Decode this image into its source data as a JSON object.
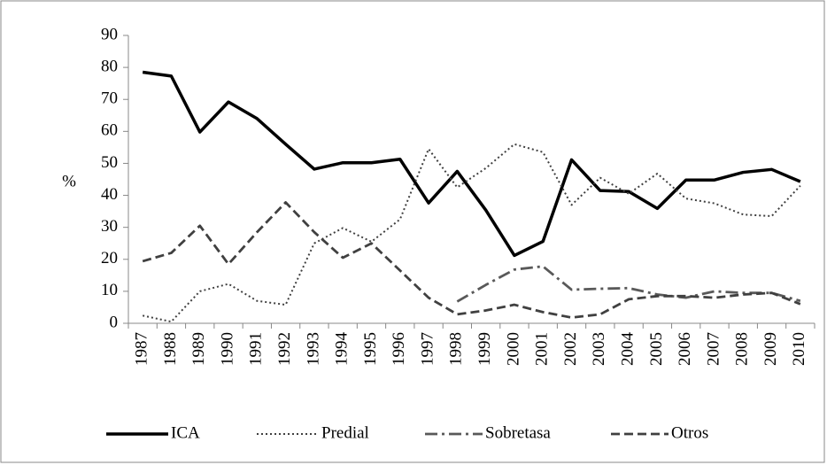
{
  "chart_data": {
    "type": "line",
    "y_label": "%",
    "categories": [
      "1987",
      "1988",
      "1989",
      "1990",
      "1991",
      "1992",
      "1993",
      "1994",
      "1995",
      "1996",
      "1997",
      "1998",
      "1999",
      "2000",
      "2001",
      "2002",
      "2003",
      "2004",
      "2005",
      "2006",
      "2007",
      "2008",
      "2009",
      "2010"
    ],
    "series": [
      {
        "name": "ICA",
        "color": "#000000",
        "linestyle": "solid",
        "values": [
          78.5,
          77.3,
          59.8,
          69.2,
          64,
          56,
          48.2,
          50.2,
          50.2,
          51.3,
          37.6,
          47.5,
          35.4,
          21.2,
          25.6,
          51.1,
          41.5,
          41.2,
          35.9,
          44.8,
          44.8,
          47.2,
          48.1,
          44.3
        ]
      },
      {
        "name": "Predial",
        "color": "#404040",
        "linestyle": "dotted",
        "values": [
          2.4,
          0.5,
          10,
          12.3,
          7,
          5.8,
          25,
          29.8,
          25.5,
          32.5,
          54.5,
          42.5,
          48.5,
          56,
          53.5,
          37,
          45.5,
          40.5,
          46.8,
          39,
          37.5,
          34,
          33.5,
          43
        ]
      },
      {
        "name": "Sobretasa",
        "color": "#595959",
        "linestyle": "dashdot",
        "values": [
          null,
          null,
          null,
          null,
          null,
          null,
          null,
          null,
          null,
          null,
          null,
          6.8,
          12,
          16.8,
          17.8,
          10.5,
          10.8,
          11,
          9,
          8,
          10,
          9.5,
          9.5,
          7
        ]
      },
      {
        "name": "Otros",
        "color": "#404040",
        "linestyle": "dashed",
        "values": [
          19.4,
          22,
          30.5,
          18.5,
          28.5,
          37.8,
          28.5,
          20.5,
          25,
          16.5,
          8,
          2.8,
          4,
          5.8,
          3.5,
          1.8,
          2.8,
          7.5,
          8.5,
          8.5,
          8,
          9,
          9.5,
          6
        ]
      }
    ],
    "ylim": [
      0,
      90
    ],
    "yticks": [
      0,
      10,
      20,
      30,
      40,
      50,
      60,
      70,
      80,
      90
    ],
    "grid": false,
    "legend": "bottom"
  }
}
